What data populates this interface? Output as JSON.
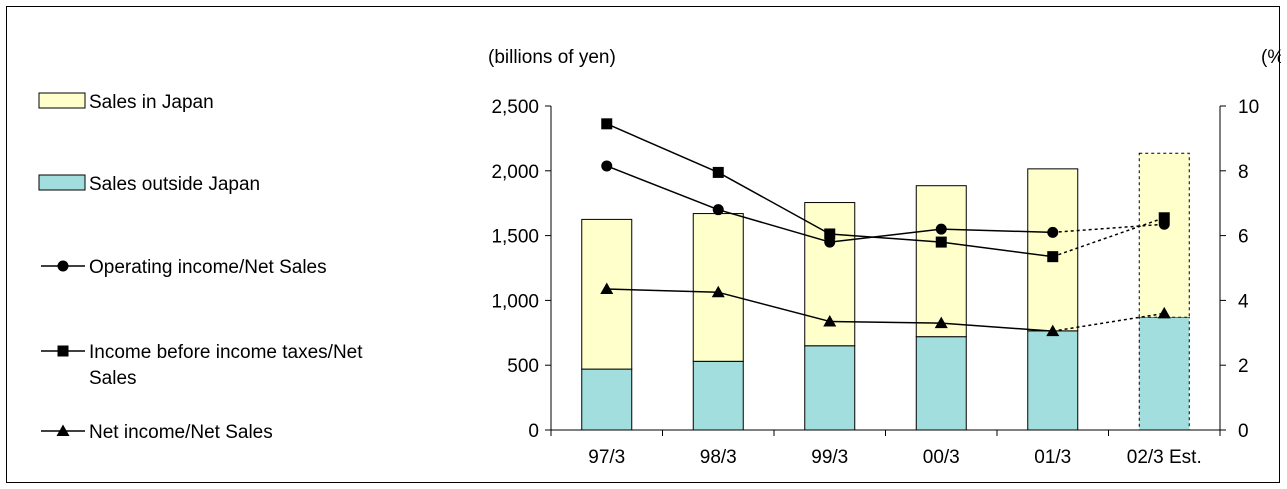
{
  "chart_data": {
    "type": "bar",
    "stacked": true,
    "categories": [
      "97/3",
      "98/3",
      "99/3",
      "00/3",
      "01/3",
      "02/3 Est."
    ],
    "estimated_category": "02/3 Est.",
    "left_axis": {
      "label": "(billions of yen)",
      "ylim": [
        0,
        2500
      ],
      "ticks": [
        0,
        500,
        1000,
        1500,
        2000,
        2500
      ],
      "tick_labels": [
        "0",
        "500",
        "1,000",
        "1,500",
        "2,000",
        "2,500"
      ]
    },
    "right_axis": {
      "label": "(%)",
      "ylim": [
        0,
        10
      ],
      "ticks": [
        0,
        2,
        4,
        6,
        8,
        10
      ],
      "tick_labels": [
        "0",
        "2",
        "4",
        "6",
        "8",
        "10"
      ]
    },
    "bar_series": [
      {
        "name": "Sales outside Japan",
        "color": "#a3dede",
        "values": [
          470,
          530,
          650,
          720,
          765,
          870
        ]
      },
      {
        "name": "Sales in Japan",
        "color": "#ffffcc",
        "values": [
          1155,
          1140,
          1105,
          1165,
          1250,
          1265
        ]
      }
    ],
    "line_series": [
      {
        "name": "Operating income/Net Sales",
        "marker": "circle",
        "values": [
          8.15,
          6.8,
          5.8,
          6.2,
          6.1,
          6.35
        ]
      },
      {
        "name": "Income before income taxes/Net Sales",
        "marker": "square",
        "values": [
          9.45,
          7.95,
          6.05,
          5.8,
          5.35,
          6.55
        ]
      },
      {
        "name": "Net income/Net Sales",
        "marker": "triangle",
        "values": [
          4.35,
          4.25,
          3.35,
          3.3,
          3.05,
          3.6
        ]
      }
    ],
    "legend": {
      "placement": "left",
      "items": [
        {
          "label": "Sales in Japan",
          "kind": "box",
          "color": "#ffffcc"
        },
        {
          "label": "Sales outside Japan",
          "kind": "box",
          "color": "#a3dede"
        },
        {
          "label": "Operating income/Net Sales",
          "kind": "line",
          "marker": "circle"
        },
        {
          "label": "Income before income taxes/Net Sales",
          "label_lines": [
            "Income before income taxes/Net",
            "Sales"
          ],
          "kind": "line",
          "marker": "square"
        },
        {
          "label": "Net income/Net Sales",
          "kind": "line",
          "marker": "triangle"
        }
      ]
    },
    "grid": false
  }
}
